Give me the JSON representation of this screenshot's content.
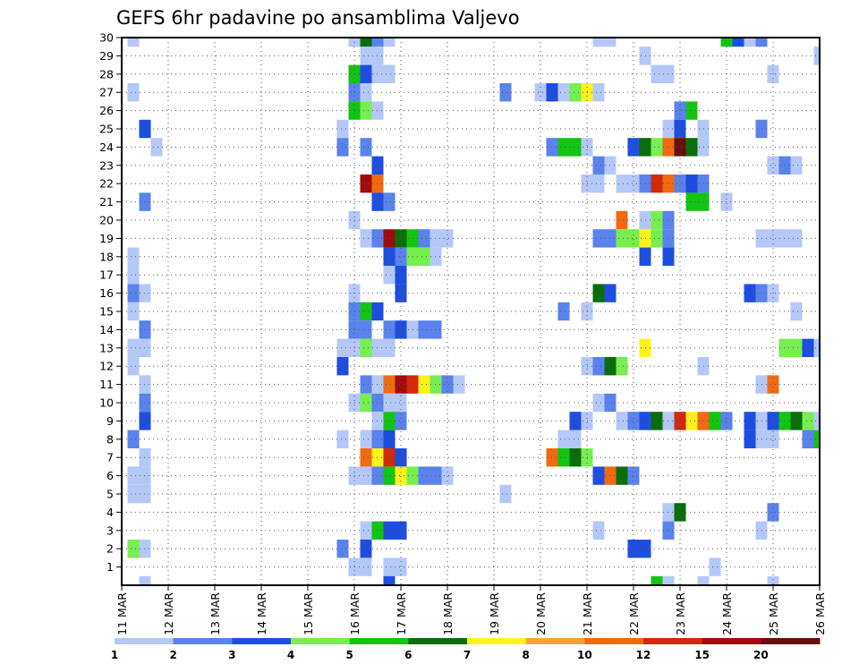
{
  "chart_data": {
    "type": "heatmap",
    "title": "GEFS 6hr padavine po ansamblima Valjevo",
    "x_tick_labels": [
      "11 MAR",
      "12 MAR",
      "13 MAR",
      "14 MAR",
      "15 MAR",
      "16 MAR",
      "17 MAR",
      "18 MAR",
      "19 MAR",
      "20 MAR",
      "21 MAR",
      "22 MAR",
      "23 MAR",
      "24 MAR",
      "25 MAR",
      "26 MAR"
    ],
    "y_tick_labels": [
      "1",
      "2",
      "3",
      "4",
      "5",
      "6",
      "7",
      "8",
      "9",
      "10",
      "11",
      "12",
      "13",
      "14",
      "15",
      "16",
      "17",
      "18",
      "19",
      "20",
      "21",
      "22",
      "23",
      "24",
      "25",
      "26",
      "27",
      "28",
      "29",
      "30"
    ],
    "x_range_days": [
      11,
      26
    ],
    "y_range": [
      0,
      30
    ],
    "x_step_days": 0.25,
    "grid": true,
    "legend_position": "bottom",
    "colorbar": {
      "labels": [
        "1",
        "2",
        "3",
        "4",
        "5",
        "6",
        "7",
        "8",
        "10",
        "12",
        "15",
        "20"
      ],
      "colors": [
        "#b4c8f8",
        "#5a82ec",
        "#1e4ee0",
        "#78ee50",
        "#14c414",
        "#0a6e0a",
        "#fff21e",
        "#faa532",
        "#f06a12",
        "#d2280c",
        "#a00c0c",
        "#690c0c"
      ]
    },
    "cells": [
      {
        "x": 11.25,
        "y": 30,
        "v": 1
      },
      {
        "x": 16,
        "y": 30,
        "v": 1
      },
      {
        "x": 16.25,
        "y": 30,
        "v": 6
      },
      {
        "x": 16.5,
        "y": 30,
        "v": 2
      },
      {
        "x": 16.75,
        "y": 30,
        "v": 1
      },
      {
        "x": 21.25,
        "y": 30,
        "v": 1
      },
      {
        "x": 21.5,
        "y": 30,
        "v": 1
      },
      {
        "x": 24,
        "y": 30,
        "v": 5
      },
      {
        "x": 24.25,
        "y": 30,
        "v": 3
      },
      {
        "x": 24.5,
        "y": 30,
        "v": 1
      },
      {
        "x": 24.75,
        "y": 30,
        "v": 2
      },
      {
        "x": 16.25,
        "y": 29,
        "v": 1
      },
      {
        "x": 16.5,
        "y": 29,
        "v": 1
      },
      {
        "x": 22.25,
        "y": 29,
        "v": 1
      },
      {
        "x": 26,
        "y": 29,
        "v": 1
      },
      {
        "x": 16,
        "y": 28,
        "v": 5
      },
      {
        "x": 16.25,
        "y": 28,
        "v": 3
      },
      {
        "x": 16.5,
        "y": 28,
        "v": 1
      },
      {
        "x": 16.75,
        "y": 28,
        "v": 1
      },
      {
        "x": 22.5,
        "y": 28,
        "v": 1
      },
      {
        "x": 22.75,
        "y": 28,
        "v": 1
      },
      {
        "x": 25,
        "y": 28,
        "v": 1
      },
      {
        "x": 11.25,
        "y": 27,
        "v": 1
      },
      {
        "x": 16,
        "y": 27,
        "v": 2
      },
      {
        "x": 16.25,
        "y": 27,
        "v": 1
      },
      {
        "x": 19.25,
        "y": 27,
        "v": 2
      },
      {
        "x": 20,
        "y": 27,
        "v": 1
      },
      {
        "x": 20.25,
        "y": 27,
        "v": 3
      },
      {
        "x": 20.5,
        "y": 27,
        "v": 1
      },
      {
        "x": 20.75,
        "y": 27,
        "v": 4
      },
      {
        "x": 21,
        "y": 27,
        "v": 7
      },
      {
        "x": 21.25,
        "y": 27,
        "v": 1
      },
      {
        "x": 16,
        "y": 26,
        "v": 5
      },
      {
        "x": 16.25,
        "y": 26,
        "v": 4
      },
      {
        "x": 16.5,
        "y": 26,
        "v": 1
      },
      {
        "x": 23,
        "y": 26,
        "v": 2
      },
      {
        "x": 23.25,
        "y": 26,
        "v": 5
      },
      {
        "x": 11.5,
        "y": 25,
        "v": 3
      },
      {
        "x": 15.75,
        "y": 25,
        "v": 1
      },
      {
        "x": 22.75,
        "y": 25,
        "v": 1
      },
      {
        "x": 23,
        "y": 25,
        "v": 3
      },
      {
        "x": 23.5,
        "y": 25,
        "v": 1
      },
      {
        "x": 24.75,
        "y": 25,
        "v": 2
      },
      {
        "x": 11.75,
        "y": 24,
        "v": 1
      },
      {
        "x": 15.75,
        "y": 24,
        "v": 2
      },
      {
        "x": 16.25,
        "y": 24,
        "v": 2
      },
      {
        "x": 20.25,
        "y": 24,
        "v": 2
      },
      {
        "x": 20.5,
        "y": 24,
        "v": 5
      },
      {
        "x": 20.75,
        "y": 24,
        "v": 5
      },
      {
        "x": 21,
        "y": 24,
        "v": 1
      },
      {
        "x": 22,
        "y": 24,
        "v": 3
      },
      {
        "x": 22.25,
        "y": 24,
        "v": 6
      },
      {
        "x": 22.5,
        "y": 24,
        "v": 4
      },
      {
        "x": 22.75,
        "y": 24,
        "v": 10
      },
      {
        "x": 23,
        "y": 24,
        "v": 20
      },
      {
        "x": 23.25,
        "y": 24,
        "v": 6
      },
      {
        "x": 23.5,
        "y": 24,
        "v": 1
      },
      {
        "x": 16.5,
        "y": 23,
        "v": 3
      },
      {
        "x": 21.25,
        "y": 23,
        "v": 2
      },
      {
        "x": 21.5,
        "y": 23,
        "v": 1
      },
      {
        "x": 25,
        "y": 23,
        "v": 1
      },
      {
        "x": 25.25,
        "y": 23,
        "v": 2
      },
      {
        "x": 25.5,
        "y": 23,
        "v": 1
      },
      {
        "x": 16.25,
        "y": 22,
        "v": 15
      },
      {
        "x": 16.5,
        "y": 22,
        "v": 10
      },
      {
        "x": 21,
        "y": 22,
        "v": 1
      },
      {
        "x": 21.25,
        "y": 22,
        "v": 1
      },
      {
        "x": 21.75,
        "y": 22,
        "v": 1
      },
      {
        "x": 22,
        "y": 22,
        "v": 1
      },
      {
        "x": 22.25,
        "y": 22,
        "v": 2
      },
      {
        "x": 22.5,
        "y": 22,
        "v": 12
      },
      {
        "x": 22.75,
        "y": 22,
        "v": 10
      },
      {
        "x": 23,
        "y": 22,
        "v": 2
      },
      {
        "x": 23.25,
        "y": 22,
        "v": 3
      },
      {
        "x": 23.5,
        "y": 22,
        "v": 2
      },
      {
        "x": 11.5,
        "y": 21,
        "v": 2
      },
      {
        "x": 16.5,
        "y": 21,
        "v": 3
      },
      {
        "x": 16.75,
        "y": 21,
        "v": 2
      },
      {
        "x": 23.25,
        "y": 21,
        "v": 5
      },
      {
        "x": 23.5,
        "y": 21,
        "v": 5
      },
      {
        "x": 24,
        "y": 21,
        "v": 1
      },
      {
        "x": 16,
        "y": 20,
        "v": 1
      },
      {
        "x": 21.75,
        "y": 20,
        "v": 10
      },
      {
        "x": 22.25,
        "y": 20,
        "v": 1
      },
      {
        "x": 22.5,
        "y": 20,
        "v": 4
      },
      {
        "x": 22.75,
        "y": 20,
        "v": 2
      },
      {
        "x": 16.25,
        "y": 19,
        "v": 1
      },
      {
        "x": 16.5,
        "y": 19,
        "v": 2
      },
      {
        "x": 16.75,
        "y": 19,
        "v": 15
      },
      {
        "x": 17,
        "y": 19,
        "v": 6
      },
      {
        "x": 17.25,
        "y": 19,
        "v": 5
      },
      {
        "x": 17.5,
        "y": 19,
        "v": 2
      },
      {
        "x": 17.75,
        "y": 19,
        "v": 1
      },
      {
        "x": 18,
        "y": 19,
        "v": 1
      },
      {
        "x": 21.25,
        "y": 19,
        "v": 2
      },
      {
        "x": 21.5,
        "y": 19,
        "v": 2
      },
      {
        "x": 21.75,
        "y": 19,
        "v": 4
      },
      {
        "x": 22,
        "y": 19,
        "v": 4
      },
      {
        "x": 22.25,
        "y": 19,
        "v": 7
      },
      {
        "x": 22.5,
        "y": 19,
        "v": 4
      },
      {
        "x": 22.75,
        "y": 19,
        "v": 2
      },
      {
        "x": 24.75,
        "y": 19,
        "v": 1
      },
      {
        "x": 25,
        "y": 19,
        "v": 1
      },
      {
        "x": 25.25,
        "y": 19,
        "v": 1
      },
      {
        "x": 25.5,
        "y": 19,
        "v": 1
      },
      {
        "x": 11.25,
        "y": 18,
        "v": 1
      },
      {
        "x": 16.75,
        "y": 18,
        "v": 3
      },
      {
        "x": 17,
        "y": 18,
        "v": 2
      },
      {
        "x": 17.25,
        "y": 18,
        "v": 4
      },
      {
        "x": 17.5,
        "y": 18,
        "v": 4
      },
      {
        "x": 17.75,
        "y": 18,
        "v": 1
      },
      {
        "x": 22.25,
        "y": 18,
        "v": 3
      },
      {
        "x": 22.75,
        "y": 18,
        "v": 3
      },
      {
        "x": 11.25,
        "y": 17,
        "v": 1
      },
      {
        "x": 16.75,
        "y": 17,
        "v": 1
      },
      {
        "x": 17,
        "y": 17,
        "v": 3
      },
      {
        "x": 11.25,
        "y": 16,
        "v": 2
      },
      {
        "x": 11.5,
        "y": 16,
        "v": 1
      },
      {
        "x": 16,
        "y": 16,
        "v": 1
      },
      {
        "x": 17,
        "y": 16,
        "v": 3
      },
      {
        "x": 21.25,
        "y": 16,
        "v": 6
      },
      {
        "x": 21.5,
        "y": 16,
        "v": 3
      },
      {
        "x": 24.5,
        "y": 16,
        "v": 3
      },
      {
        "x": 24.75,
        "y": 16,
        "v": 2
      },
      {
        "x": 25,
        "y": 16,
        "v": 1
      },
      {
        "x": 11.25,
        "y": 15,
        "v": 1
      },
      {
        "x": 16,
        "y": 15,
        "v": 2
      },
      {
        "x": 16.25,
        "y": 15,
        "v": 5
      },
      {
        "x": 16.5,
        "y": 15,
        "v": 3
      },
      {
        "x": 20.5,
        "y": 15,
        "v": 2
      },
      {
        "x": 21,
        "y": 15,
        "v": 1
      },
      {
        "x": 25.5,
        "y": 15,
        "v": 1
      },
      {
        "x": 11.5,
        "y": 14,
        "v": 2
      },
      {
        "x": 16,
        "y": 14,
        "v": 2
      },
      {
        "x": 16.25,
        "y": 14,
        "v": 2
      },
      {
        "x": 16.75,
        "y": 14,
        "v": 2
      },
      {
        "x": 17,
        "y": 14,
        "v": 3
      },
      {
        "x": 17.25,
        "y": 14,
        "v": 1
      },
      {
        "x": 17.5,
        "y": 14,
        "v": 2
      },
      {
        "x": 17.75,
        "y": 14,
        "v": 2
      },
      {
        "x": 11.25,
        "y": 13,
        "v": 1
      },
      {
        "x": 11.5,
        "y": 13,
        "v": 1
      },
      {
        "x": 15.75,
        "y": 13,
        "v": 1
      },
      {
        "x": 16,
        "y": 13,
        "v": 1
      },
      {
        "x": 16.25,
        "y": 13,
        "v": 4
      },
      {
        "x": 16.5,
        "y": 13,
        "v": 1
      },
      {
        "x": 16.75,
        "y": 13,
        "v": 1
      },
      {
        "x": 22.25,
        "y": 13,
        "v": 7
      },
      {
        "x": 25.25,
        "y": 13,
        "v": 4
      },
      {
        "x": 25.5,
        "y": 13,
        "v": 4
      },
      {
        "x": 25.75,
        "y": 13,
        "v": 3
      },
      {
        "x": 26,
        "y": 13,
        "v": 1
      },
      {
        "x": 11.25,
        "y": 12,
        "v": 1
      },
      {
        "x": 15.75,
        "y": 12,
        "v": 3
      },
      {
        "x": 21,
        "y": 12,
        "v": 1
      },
      {
        "x": 21.25,
        "y": 12,
        "v": 2
      },
      {
        "x": 21.5,
        "y": 12,
        "v": 6
      },
      {
        "x": 21.75,
        "y": 12,
        "v": 4
      },
      {
        "x": 23.5,
        "y": 12,
        "v": 1
      },
      {
        "x": 11.5,
        "y": 11,
        "v": 1
      },
      {
        "x": 16.25,
        "y": 11,
        "v": 2
      },
      {
        "x": 16.5,
        "y": 11,
        "v": 1
      },
      {
        "x": 16.75,
        "y": 11,
        "v": 10
      },
      {
        "x": 17,
        "y": 11,
        "v": 15
      },
      {
        "x": 17.25,
        "y": 11,
        "v": 12
      },
      {
        "x": 17.5,
        "y": 11,
        "v": 7
      },
      {
        "x": 17.75,
        "y": 11,
        "v": 4
      },
      {
        "x": 18,
        "y": 11,
        "v": 2
      },
      {
        "x": 18.25,
        "y": 11,
        "v": 1
      },
      {
        "x": 24.75,
        "y": 11,
        "v": 1
      },
      {
        "x": 25,
        "y": 11,
        "v": 10
      },
      {
        "x": 11.5,
        "y": 10,
        "v": 2
      },
      {
        "x": 16,
        "y": 10,
        "v": 1
      },
      {
        "x": 16.25,
        "y": 10,
        "v": 4
      },
      {
        "x": 16.5,
        "y": 10,
        "v": 2
      },
      {
        "x": 16.75,
        "y": 10,
        "v": 1
      },
      {
        "x": 17,
        "y": 10,
        "v": 1
      },
      {
        "x": 21.25,
        "y": 10,
        "v": 1
      },
      {
        "x": 21.5,
        "y": 10,
        "v": 2
      },
      {
        "x": 11.5,
        "y": 9,
        "v": 3
      },
      {
        "x": 16.5,
        "y": 9,
        "v": 1
      },
      {
        "x": 16.75,
        "y": 9,
        "v": 5
      },
      {
        "x": 17,
        "y": 9,
        "v": 2
      },
      {
        "x": 20.75,
        "y": 9,
        "v": 3
      },
      {
        "x": 21,
        "y": 9,
        "v": 1
      },
      {
        "x": 21.75,
        "y": 9,
        "v": 1
      },
      {
        "x": 22,
        "y": 9,
        "v": 2
      },
      {
        "x": 22.25,
        "y": 9,
        "v": 3
      },
      {
        "x": 22.5,
        "y": 9,
        "v": 6
      },
      {
        "x": 22.75,
        "y": 9,
        "v": 1
      },
      {
        "x": 23,
        "y": 9,
        "v": 12
      },
      {
        "x": 23.25,
        "y": 9,
        "v": 7
      },
      {
        "x": 23.5,
        "y": 9,
        "v": 10
      },
      {
        "x": 23.75,
        "y": 9,
        "v": 5
      },
      {
        "x": 24,
        "y": 9,
        "v": 2
      },
      {
        "x": 24.5,
        "y": 9,
        "v": 3
      },
      {
        "x": 24.75,
        "y": 9,
        "v": 1
      },
      {
        "x": 25,
        "y": 9,
        "v": 3
      },
      {
        "x": 25.25,
        "y": 9,
        "v": 5
      },
      {
        "x": 25.5,
        "y": 9,
        "v": 6
      },
      {
        "x": 25.75,
        "y": 9,
        "v": 4
      },
      {
        "x": 26,
        "y": 9,
        "v": 1
      },
      {
        "x": 11.25,
        "y": 8,
        "v": 2
      },
      {
        "x": 15.75,
        "y": 8,
        "v": 1
      },
      {
        "x": 16.25,
        "y": 8,
        "v": 1
      },
      {
        "x": 16.5,
        "y": 8,
        "v": 2
      },
      {
        "x": 16.75,
        "y": 8,
        "v": 3
      },
      {
        "x": 20.5,
        "y": 8,
        "v": 1
      },
      {
        "x": 20.75,
        "y": 8,
        "v": 1
      },
      {
        "x": 24.5,
        "y": 8,
        "v": 3
      },
      {
        "x": 24.75,
        "y": 8,
        "v": 1
      },
      {
        "x": 25,
        "y": 8,
        "v": 1
      },
      {
        "x": 25.75,
        "y": 8,
        "v": 2
      },
      {
        "x": 26,
        "y": 8,
        "v": 5
      },
      {
        "x": 11.5,
        "y": 7,
        "v": 1
      },
      {
        "x": 16.25,
        "y": 7,
        "v": 10
      },
      {
        "x": 16.5,
        "y": 7,
        "v": 7
      },
      {
        "x": 16.75,
        "y": 7,
        "v": 12
      },
      {
        "x": 17,
        "y": 7,
        "v": 3
      },
      {
        "x": 20.25,
        "y": 7,
        "v": 10
      },
      {
        "x": 20.5,
        "y": 7,
        "v": 5
      },
      {
        "x": 20.75,
        "y": 7,
        "v": 6
      },
      {
        "x": 21,
        "y": 7,
        "v": 4
      },
      {
        "x": 11.25,
        "y": 6,
        "v": 1
      },
      {
        "x": 11.5,
        "y": 6,
        "v": 1
      },
      {
        "x": 16,
        "y": 6,
        "v": 1
      },
      {
        "x": 16.25,
        "y": 6,
        "v": 1
      },
      {
        "x": 16.5,
        "y": 6,
        "v": 2
      },
      {
        "x": 16.75,
        "y": 6,
        "v": 5
      },
      {
        "x": 17,
        "y": 6,
        "v": 7
      },
      {
        "x": 17.25,
        "y": 6,
        "v": 4
      },
      {
        "x": 17.5,
        "y": 6,
        "v": 2
      },
      {
        "x": 17.75,
        "y": 6,
        "v": 2
      },
      {
        "x": 18,
        "y": 6,
        "v": 1
      },
      {
        "x": 21.25,
        "y": 6,
        "v": 3
      },
      {
        "x": 21.5,
        "y": 6,
        "v": 10
      },
      {
        "x": 21.75,
        "y": 6,
        "v": 6
      },
      {
        "x": 22,
        "y": 6,
        "v": 2
      },
      {
        "x": 11.25,
        "y": 5,
        "v": 1
      },
      {
        "x": 11.5,
        "y": 5,
        "v": 1
      },
      {
        "x": 19.25,
        "y": 5,
        "v": 1
      },
      {
        "x": 22.75,
        "y": 4,
        "v": 1
      },
      {
        "x": 23,
        "y": 4,
        "v": 6
      },
      {
        "x": 25,
        "y": 4,
        "v": 2
      },
      {
        "x": 16.25,
        "y": 3,
        "v": 1
      },
      {
        "x": 16.5,
        "y": 3,
        "v": 5
      },
      {
        "x": 16.75,
        "y": 3,
        "v": 3
      },
      {
        "x": 17,
        "y": 3,
        "v": 3
      },
      {
        "x": 21.25,
        "y": 3,
        "v": 1
      },
      {
        "x": 22.75,
        "y": 3,
        "v": 2
      },
      {
        "x": 24.75,
        "y": 3,
        "v": 1
      },
      {
        "x": 11.25,
        "y": 2,
        "v": 4
      },
      {
        "x": 11.5,
        "y": 2,
        "v": 1
      },
      {
        "x": 15.75,
        "y": 2,
        "v": 2
      },
      {
        "x": 16.25,
        "y": 2,
        "v": 3
      },
      {
        "x": 22,
        "y": 2,
        "v": 3
      },
      {
        "x": 22.25,
        "y": 2,
        "v": 3
      },
      {
        "x": 16,
        "y": 1,
        "v": 1
      },
      {
        "x": 16.25,
        "y": 1,
        "v": 1
      },
      {
        "x": 16.75,
        "y": 1,
        "v": 1
      },
      {
        "x": 17,
        "y": 1,
        "v": 1
      },
      {
        "x": 23.75,
        "y": 1,
        "v": 1
      },
      {
        "x": 11.5,
        "y": 0,
        "v": 1
      },
      {
        "x": 16.75,
        "y": 0,
        "v": 3
      },
      {
        "x": 22.5,
        "y": 0,
        "v": 5
      },
      {
        "x": 22.75,
        "y": 0,
        "v": 1
      },
      {
        "x": 23.5,
        "y": 0,
        "v": 1
      },
      {
        "x": 25,
        "y": 0,
        "v": 1
      }
    ]
  }
}
